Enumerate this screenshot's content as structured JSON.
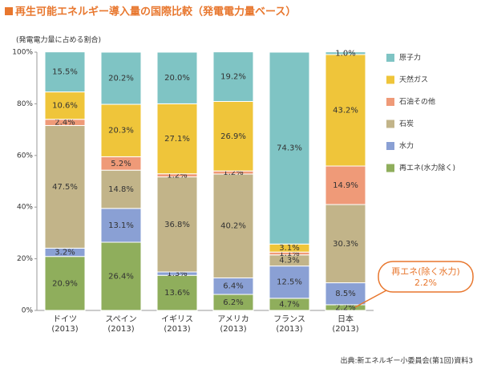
{
  "chart_data": {
    "type": "stacked_bar",
    "title": "再生可能エネルギー導入量の国際比較（発電電力量ベース）",
    "y_label": "(発電電力量に占める割合)",
    "source": "出典:新エネルギー小委員会(第1回)資料3",
    "categories": [
      "ドイツ\n(2013)",
      "スペイン\n(2013)",
      "イギリス\n(2013)",
      "アメリカ\n(2013)",
      "フランス\n(2013)",
      "日本\n(2013)"
    ],
    "ylim": [
      0,
      100
    ],
    "yticks": [
      {
        "value": 0,
        "label": "0%"
      },
      {
        "value": 20,
        "label": "20%"
      },
      {
        "value": 40,
        "label": "40%"
      },
      {
        "value": 60,
        "label": "60%"
      },
      {
        "value": 80,
        "label": "80%"
      },
      {
        "value": 100,
        "label": "100%"
      }
    ],
    "series": [
      {
        "name": "再エネ(水力除く)",
        "color": "#8fae5c",
        "values": [
          20.9,
          26.4,
          13.6,
          6.2,
          4.7,
          2.2
        ],
        "value_labels": [
          "20.9%",
          "26.4%",
          "13.6%",
          "6.2%",
          "4.7%",
          "2.2%"
        ]
      },
      {
        "name": "水力",
        "color": "#8aa0d4",
        "values": [
          3.2,
          13.1,
          1.3,
          6.4,
          12.5,
          8.5
        ],
        "value_labels": [
          "3.2%",
          "13.1%",
          "1.3%",
          "6.4%",
          "12.5%",
          "8.5%"
        ]
      },
      {
        "name": "石炭",
        "color": "#c2b489",
        "values": [
          47.5,
          14.8,
          36.8,
          40.2,
          4.3,
          30.3
        ],
        "value_labels": [
          "47.5%",
          "14.8%",
          "36.8%",
          "40.2%",
          "4.3%",
          "30.3%"
        ]
      },
      {
        "name": "石油その他",
        "color": "#ef9a78",
        "values": [
          2.4,
          5.2,
          1.2,
          1.2,
          1.1,
          14.9
        ],
        "value_labels": [
          "2.4%",
          "5.2%",
          "1.2%",
          "1.2%",
          "1.1%",
          "14.9%"
        ]
      },
      {
        "name": "天然ガス",
        "color": "#efc53a",
        "values": [
          10.6,
          20.3,
          27.1,
          26.9,
          3.1,
          43.2
        ],
        "value_labels": [
          "10.6%",
          "20.3%",
          "27.1%",
          "26.9%",
          "3.1%",
          "43.2%"
        ]
      },
      {
        "name": "原子力",
        "color": "#7fc4c4",
        "values": [
          15.5,
          20.2,
          20.0,
          19.2,
          74.3,
          1.0
        ],
        "value_labels": [
          "15.5%",
          "20.2%",
          "20.0%",
          "19.2%",
          "74.3%",
          "1.0%"
        ]
      }
    ],
    "annotation": "再エネ(除く水力)"
  }
}
